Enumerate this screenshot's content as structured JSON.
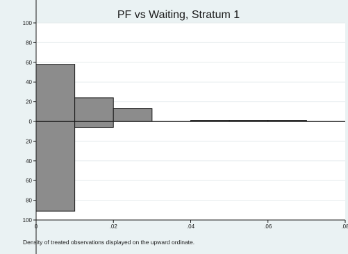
{
  "chart_data": {
    "type": "bar",
    "title": "PF vs Waiting, Stratum 1",
    "note": "Density of treated observations displayed on the upward ordinate.",
    "xlim": [
      0,
      0.08
    ],
    "ylim": [
      -100,
      100
    ],
    "x_ticks": [
      {
        "value": 0,
        "label": "0"
      },
      {
        "value": 0.02,
        "label": ".02"
      },
      {
        "value": 0.04,
        "label": ".04"
      },
      {
        "value": 0.06,
        "label": ".06"
      },
      {
        "value": 0.08,
        "label": ".08"
      }
    ],
    "y_ticks": [
      {
        "value": 100,
        "label": "100"
      },
      {
        "value": 80,
        "label": "80"
      },
      {
        "value": 60,
        "label": "60"
      },
      {
        "value": 40,
        "label": "40"
      },
      {
        "value": 20,
        "label": "20"
      },
      {
        "value": 0,
        "label": "0"
      },
      {
        "value": -20,
        "label": "20"
      },
      {
        "value": -40,
        "label": "40"
      },
      {
        "value": -60,
        "label": "60"
      },
      {
        "value": -80,
        "label": "80"
      },
      {
        "value": -100,
        "label": "100"
      }
    ],
    "grid": true,
    "bin_width": 0.01,
    "series": [
      {
        "bins": [
          {
            "x": 0.0,
            "value": 58
          },
          {
            "x": 0.01,
            "value": 24
          },
          {
            "x": 0.02,
            "value": 13
          },
          {
            "x": 0.04,
            "value": 1
          },
          {
            "x": 0.05,
            "value": 1
          },
          {
            "x": 0.06,
            "value": 1
          }
        ]
      },
      {
        "bins": [
          {
            "x": 0.0,
            "value": -91
          },
          {
            "x": 0.01,
            "value": -6
          }
        ]
      }
    ],
    "colors": {
      "bar_fill": "#8c8c8c",
      "bar_stroke": "#1a1a1a",
      "plot_bg": "#ffffff",
      "outer_bg": "#eaf2f3",
      "grid": "#e6ecee",
      "text": "#1a1a1a"
    }
  }
}
